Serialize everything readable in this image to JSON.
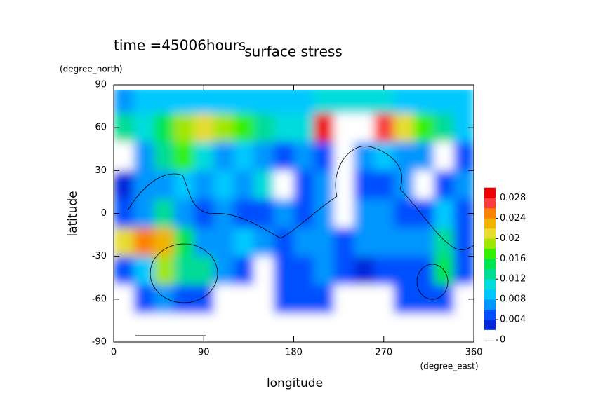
{
  "chart_data": {
    "type": "heatmap",
    "title": "surface stress",
    "subtitle": "time =45006hours",
    "x_label": "longitude",
    "y_label": "latitude",
    "x_unit": "(degree_east)",
    "y_unit": "(degree_north)",
    "xlim": [
      0,
      360
    ],
    "ylim": [
      -90,
      90
    ],
    "xticks": [
      0,
      90,
      180,
      270,
      360
    ],
    "yticks": [
      -90,
      -60,
      -30,
      0,
      30,
      60,
      90
    ],
    "x": [
      10,
      30,
      50,
      70,
      90,
      110,
      130,
      150,
      170,
      190,
      210,
      230,
      250,
      270,
      290,
      310,
      330,
      350
    ],
    "y": [
      80,
      60,
      40,
      20,
      0,
      -20,
      -40,
      -60,
      -80
    ],
    "values": [
      [
        0.007,
        0.008,
        0.008,
        0.008,
        0.008,
        0.008,
        0.008,
        0.009,
        0.009,
        0.009,
        0.01,
        0.01,
        0.01,
        0.01,
        0.009,
        0.008,
        0.008,
        0.008
      ],
      [
        0.012,
        0.01,
        0.014,
        0.018,
        0.02,
        0.018,
        0.016,
        0.012,
        0.01,
        0.01,
        0.028,
        0.034,
        0.03,
        0.026,
        0.02,
        0.016,
        0.012,
        0.008
      ],
      [
        0,
        0.006,
        0.012,
        0.016,
        0.01,
        0.006,
        0.008,
        0.006,
        0.004,
        0.006,
        0.004,
        0,
        0.006,
        0.008,
        0.006,
        0.006,
        0,
        0.004
      ],
      [
        0.002,
        0.006,
        0.006,
        0.008,
        0.006,
        0.008,
        0.006,
        0.01,
        0,
        0.004,
        0.006,
        0,
        0.004,
        0.004,
        0.006,
        0,
        0.004,
        0.006
      ],
      [
        0.004,
        0.006,
        0.012,
        0.006,
        0.004,
        0.006,
        0.004,
        0.004,
        0.006,
        0.004,
        0.006,
        0,
        0.006,
        0.006,
        0.004,
        0.004,
        0.008,
        0.004
      ],
      [
        0.02,
        0.024,
        0.022,
        0.014,
        0.006,
        0.006,
        0.008,
        0.006,
        0.004,
        0.006,
        0.006,
        0.004,
        0.006,
        0.006,
        0.006,
        0.006,
        0.012,
        0.004
      ],
      [
        0.004,
        0.008,
        0.018,
        0.012,
        0.012,
        0.006,
        0.004,
        0,
        0.004,
        0.004,
        0.006,
        0.004,
        0.002,
        0.004,
        0.004,
        0.004,
        0.014,
        0.004
      ],
      [
        0,
        0.004,
        0.006,
        0.004,
        0.004,
        0,
        0,
        0,
        0.004,
        0.004,
        0.004,
        0,
        0,
        0,
        0.004,
        0.004,
        0.004,
        0
      ],
      [
        0,
        0,
        0,
        0,
        0,
        0,
        0,
        0,
        0,
        0,
        0,
        0,
        0,
        0,
        0,
        0,
        0,
        0
      ]
    ],
    "colorbar": {
      "ylim": [
        0,
        0.03
      ],
      "yticks": [
        0,
        0.004,
        0.008,
        0.012,
        0.016,
        0.02,
        0.024,
        0.028
      ],
      "colors": [
        "#ffffff",
        "#0028dc",
        "#0050ff",
        "#0096ff",
        "#00c8ff",
        "#00dcdc",
        "#00dc96",
        "#00e650",
        "#32f000",
        "#a0e600",
        "#e6dc32",
        "#f0b400",
        "#fa8200",
        "#fa3c3c",
        "#f00000"
      ],
      "over_color": "#ffffff"
    }
  }
}
